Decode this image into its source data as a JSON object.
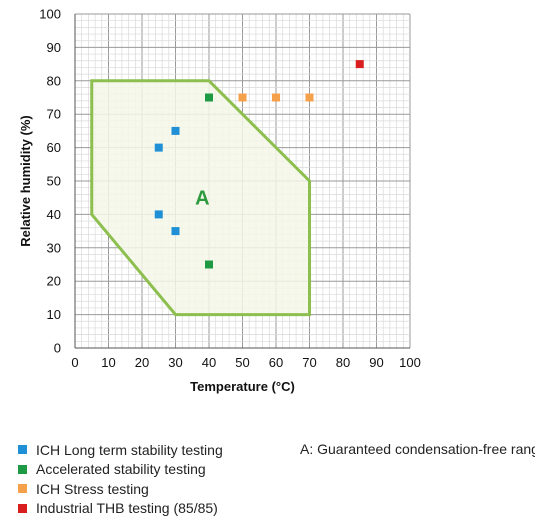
{
  "chart_data": {
    "type": "scatter",
    "xlabel": "Temperature (°C)",
    "ylabel": "Relative humidity (%)",
    "xlim": [
      0,
      100
    ],
    "ylim": [
      0,
      100
    ],
    "xticks": [
      0,
      10,
      20,
      30,
      40,
      50,
      60,
      70,
      80,
      90,
      100
    ],
    "yticks": [
      0,
      10,
      20,
      30,
      40,
      50,
      60,
      70,
      80,
      90,
      100
    ],
    "grid": true,
    "series": [
      {
        "name": "ICH Long term stability testing",
        "color": "#1f8fd6",
        "points": [
          [
            25,
            60
          ],
          [
            30,
            65
          ],
          [
            25,
            40
          ],
          [
            30,
            35
          ]
        ]
      },
      {
        "name": "Accelerated stability testing",
        "color": "#1e9a45",
        "points": [
          [
            40,
            75
          ],
          [
            40,
            25
          ]
        ]
      },
      {
        "name": "ICH Stress testing",
        "color": "#f5a04a",
        "points": [
          [
            50,
            75
          ],
          [
            60,
            75
          ],
          [
            70,
            75
          ]
        ]
      },
      {
        "name": "Industrial THB testing (85/85)",
        "color": "#d81e1e",
        "points": [
          [
            85,
            85
          ]
        ]
      }
    ],
    "region": {
      "label": "A",
      "polygon": [
        [
          5,
          80
        ],
        [
          40,
          80
        ],
        [
          70,
          50
        ],
        [
          70,
          10
        ],
        [
          30,
          10
        ],
        [
          5,
          40
        ]
      ],
      "fill": "#f4f7e8",
      "stroke": "#8dbf4f",
      "label_at": [
        38,
        45
      ]
    },
    "annotation": "A: Guaranteed condensation-free range"
  }
}
